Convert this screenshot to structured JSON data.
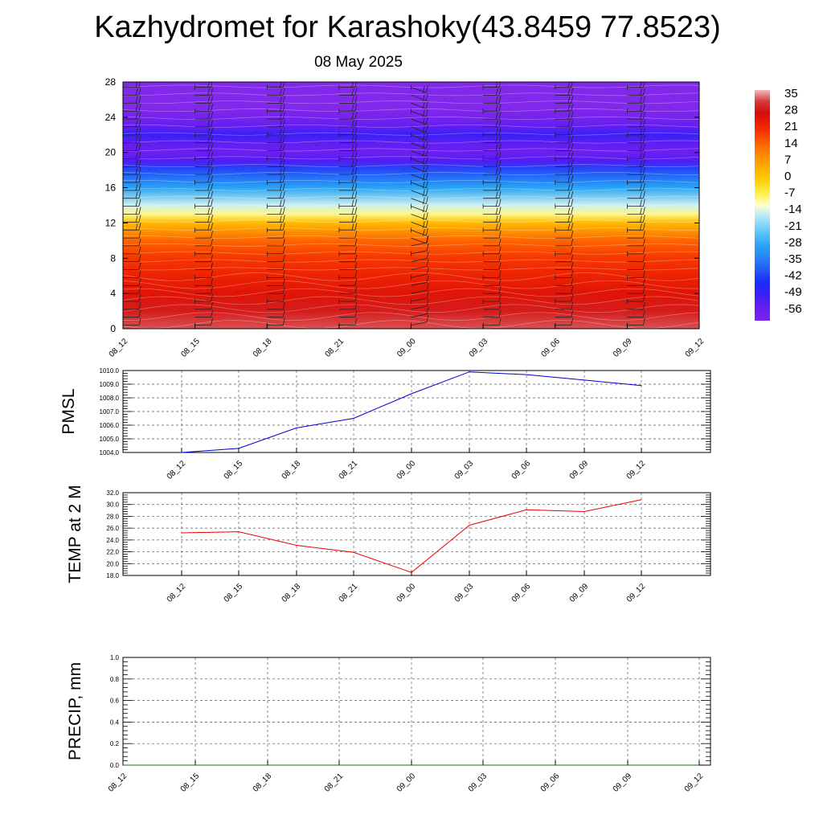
{
  "chart_data": [
    {
      "type": "heatmap",
      "panel": "cross-section",
      "title": "Kazhydromet for Karashoky(43.8459 77.8523)",
      "subtitle": "08 May 2025",
      "x": [
        "08_12",
        "08_15",
        "08_18",
        "08_21",
        "09_00",
        "09_03",
        "09_06",
        "09_09",
        "09_12"
      ],
      "y_ticks": [
        "0",
        "4",
        "8",
        "12",
        "16",
        "20",
        "24",
        "28"
      ],
      "ylim": [
        0,
        28
      ],
      "colorbar_labels": [
        "35",
        "28",
        "21",
        "14",
        "7",
        "0",
        "-7",
        "-14",
        "-21",
        "-28",
        "-35",
        "-42",
        "-49",
        "-56"
      ],
      "colorbar_range": [
        -60,
        38
      ],
      "profile_levels": [
        0,
        2,
        4,
        6,
        8,
        10,
        12,
        13,
        14,
        16,
        18,
        19,
        20,
        21,
        22,
        23,
        25,
        28
      ],
      "profile_values": [
        34,
        30,
        26,
        23,
        20,
        15,
        3,
        -8,
        -14,
        -28,
        -40,
        -51,
        -56,
        -54,
        -48,
        -55,
        -62,
        -62
      ],
      "grid": false,
      "has_wind_barbs": true
    },
    {
      "type": "line",
      "panel": "pmsl",
      "ylabel": "PMSL",
      "x": [
        "08_12",
        "08_15",
        "08_18",
        "08_21",
        "09_00",
        "09_03",
        "09_06",
        "09_09",
        "09_12"
      ],
      "y_ticks": [
        "1010.0",
        "1009.0",
        "1008.0",
        "1007.0",
        "1006.0",
        "1005.0",
        "1004.0"
      ],
      "ylim": [
        1004,
        1010
      ],
      "series": [
        {
          "color": "#0000cc",
          "values": [
            1004.0,
            1004.3,
            1005.8,
            1006.5,
            1008.3,
            1009.9,
            1009.7,
            1009.3,
            1008.9
          ]
        }
      ],
      "grid": true
    },
    {
      "type": "line",
      "panel": "temp",
      "ylabel": "TEMP at 2 M",
      "x": [
        "08_12",
        "08_15",
        "08_18",
        "08_21",
        "09_00",
        "09_03",
        "09_06",
        "09_09",
        "09_12"
      ],
      "y_ticks": [
        "32.0",
        "30.0",
        "28.0",
        "26.0",
        "24.0",
        "22.0",
        "20.0",
        "18.0"
      ],
      "ylim": [
        18,
        32
      ],
      "series": [
        {
          "color": "#ee0000",
          "values": [
            25.2,
            25.4,
            23.1,
            21.9,
            18.5,
            26.5,
            29.1,
            28.8,
            30.8
          ]
        }
      ],
      "grid": true
    },
    {
      "type": "line",
      "panel": "precip",
      "ylabel": "PRECIP, mm",
      "x": [
        "08_12",
        "08_15",
        "08_18",
        "08_21",
        "09_00",
        "09_03",
        "09_06",
        "09_09",
        "09_12"
      ],
      "y_ticks": [
        "1.0",
        "0.8",
        "0.6",
        "0.4",
        "0.2",
        "0.0"
      ],
      "ylim": [
        0,
        1
      ],
      "series": [
        {
          "color": "#007700",
          "values": [
            0,
            0,
            0,
            0,
            0,
            0,
            0,
            0,
            0
          ]
        }
      ],
      "grid": true
    }
  ]
}
